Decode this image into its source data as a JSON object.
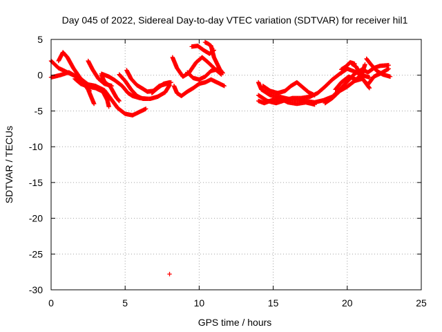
{
  "chart_data": {
    "type": "scatter",
    "title": "Day 045 of 2022, Sidereal Day-to-day VTEC variation (SDTVAR) for receiver hil1",
    "xlabel": "GPS time / hours",
    "ylabel": "SDTVAR / TECUs",
    "xlim": [
      0,
      25
    ],
    "ylim": [
      -30,
      5
    ],
    "xticks": [
      0,
      5,
      10,
      15,
      20,
      25
    ],
    "yticks": [
      5,
      0,
      -5,
      -10,
      -15,
      -20,
      -25,
      -30
    ],
    "x_tick_labels": [
      "0",
      "5",
      "10",
      "15",
      "20",
      "25"
    ],
    "y_tick_labels": [
      "5",
      "0",
      "-5",
      "-10",
      "-15",
      "-20",
      "-25",
      "-30"
    ],
    "grid": true,
    "marker": "plus",
    "series_color": "#ff0000",
    "tracks": [
      [
        [
          0.0,
          2.0
        ],
        [
          0.5,
          1.0
        ],
        [
          1.0,
          0.5
        ],
        [
          1.5,
          0.0
        ],
        [
          2.0,
          -0.5
        ],
        [
          2.5,
          -2.0
        ],
        [
          2.9,
          -4.0
        ]
      ],
      [
        [
          0.0,
          -0.3
        ],
        [
          0.6,
          0.0
        ],
        [
          1.2,
          0.4
        ],
        [
          1.8,
          -0.3
        ],
        [
          2.2,
          -1.2
        ],
        [
          2.6,
          -2.2
        ]
      ],
      [
        [
          0.5,
          2.0
        ],
        [
          0.8,
          3.2
        ],
        [
          1.1,
          2.5
        ],
        [
          1.5,
          1.0
        ],
        [
          2.0,
          -0.5
        ],
        [
          2.5,
          -1.3
        ],
        [
          3.0,
          -1.5
        ],
        [
          3.6,
          -2.1
        ],
        [
          4.0,
          -3.2
        ],
        [
          4.5,
          -4.6
        ],
        [
          5.0,
          -5.4
        ],
        [
          5.5,
          -5.6
        ],
        [
          6.0,
          -5.1
        ],
        [
          6.4,
          -4.7
        ]
      ],
      [
        [
          1.6,
          -0.5
        ],
        [
          2.0,
          -1.2
        ],
        [
          2.5,
          -1.6
        ],
        [
          3.0,
          -1.8
        ],
        [
          3.5,
          -2.3
        ],
        [
          3.8,
          -3.5
        ],
        [
          3.9,
          -4.4
        ]
      ],
      [
        [
          2.5,
          2.0
        ],
        [
          2.8,
          0.8
        ],
        [
          3.2,
          -0.5
        ],
        [
          3.6,
          -1.2
        ],
        [
          4.1,
          -1.5
        ]
      ],
      [
        [
          3.4,
          0.0
        ],
        [
          3.6,
          -0.9
        ],
        [
          4.0,
          -1.6
        ],
        [
          4.4,
          -3.1
        ],
        [
          4.6,
          -3.6
        ]
      ],
      [
        [
          3.4,
          0.2
        ],
        [
          3.9,
          -0.2
        ],
        [
          4.3,
          -0.7
        ],
        [
          4.8,
          -1.5
        ],
        [
          5.2,
          -2.5
        ],
        [
          5.5,
          -2.9
        ],
        [
          6.0,
          -3.2
        ],
        [
          6.5,
          -3.3
        ]
      ],
      [
        [
          4.6,
          0.1
        ],
        [
          5.0,
          -0.8
        ],
        [
          5.4,
          -2.0
        ],
        [
          5.8,
          -2.9
        ],
        [
          6.2,
          -3.3
        ],
        [
          6.7,
          -3.3
        ],
        [
          7.2,
          -3.0
        ],
        [
          7.7,
          -2.4
        ],
        [
          8.0,
          -1.4
        ]
      ],
      [
        [
          5.1,
          0.7
        ],
        [
          5.4,
          -0.5
        ],
        [
          5.8,
          -1.4
        ],
        [
          6.2,
          -1.9
        ],
        [
          6.5,
          -2.3
        ],
        [
          6.9,
          -2.2
        ],
        [
          7.3,
          -1.5
        ],
        [
          7.8,
          -1.2
        ],
        [
          8.1,
          -1.0
        ]
      ],
      [
        [
          6.8,
          -2.5
        ],
        [
          7.2,
          -1.8
        ],
        [
          7.6,
          -1.2
        ],
        [
          8.0,
          -1.0
        ]
      ],
      [
        [
          8.0,
          -27.8
        ]
      ],
      [
        [
          8.2,
          2.5
        ],
        [
          8.5,
          1.0
        ],
        [
          8.9,
          -0.2
        ],
        [
          9.3,
          0.3
        ],
        [
          9.8,
          1.8
        ],
        [
          10.2,
          2.5
        ],
        [
          10.6,
          1.8
        ],
        [
          11.1,
          0.8
        ],
        [
          11.5,
          0.1
        ]
      ],
      [
        [
          8.3,
          -1.5
        ],
        [
          8.5,
          -2.5
        ],
        [
          8.8,
          -2.9
        ],
        [
          9.2,
          -2.3
        ],
        [
          9.6,
          -1.8
        ],
        [
          10.0,
          -1.2
        ],
        [
          10.4,
          -1.0
        ],
        [
          10.8,
          -0.6
        ],
        [
          11.2,
          -1.0
        ],
        [
          11.7,
          -1.5
        ]
      ],
      [
        [
          9.2,
          0.4
        ],
        [
          9.6,
          -0.4
        ],
        [
          10.0,
          -0.6
        ],
        [
          10.4,
          -0.2
        ],
        [
          10.8,
          0.6
        ],
        [
          11.2,
          0.8
        ]
      ],
      [
        [
          9.5,
          4.0
        ],
        [
          9.9,
          4.1
        ],
        [
          10.3,
          3.5
        ],
        [
          10.7,
          3.0
        ],
        [
          11.0,
          3.5
        ]
      ],
      [
        [
          10.4,
          4.6
        ],
        [
          10.6,
          4.4
        ],
        [
          10.8,
          4.1
        ],
        [
          11.0,
          2.5
        ],
        [
          11.4,
          0.8
        ],
        [
          11.6,
          0.3
        ]
      ],
      [
        [
          14.0,
          -1.0
        ],
        [
          14.2,
          -2.0
        ],
        [
          14.8,
          -2.8
        ],
        [
          15.4,
          -3.0
        ],
        [
          16.0,
          -3.3
        ],
        [
          16.6,
          -3.4
        ],
        [
          17.2,
          -3.6
        ],
        [
          17.8,
          -3.8
        ],
        [
          18.4,
          -3.5
        ],
        [
          19.0,
          -3.0
        ],
        [
          19.5,
          -2.0
        ],
        [
          20.0,
          -0.9
        ],
        [
          20.5,
          0.2
        ],
        [
          21.0,
          0.8
        ],
        [
          21.4,
          0.4
        ],
        [
          21.8,
          1.0
        ],
        [
          22.2,
          1.3
        ],
        [
          22.8,
          1.4
        ]
      ],
      [
        [
          14.0,
          -2.8
        ],
        [
          14.6,
          -3.6
        ],
        [
          15.2,
          -3.9
        ],
        [
          15.8,
          -3.5
        ],
        [
          16.3,
          -3.2
        ],
        [
          16.9,
          -3.2
        ],
        [
          17.5,
          -3.0
        ],
        [
          18.0,
          -2.5
        ],
        [
          18.5,
          -1.6
        ],
        [
          19.0,
          -0.6
        ],
        [
          19.5,
          0.2
        ],
        [
          20.0,
          0.9
        ],
        [
          20.5,
          0.5
        ],
        [
          21.0,
          0.0
        ],
        [
          21.5,
          -0.3
        ]
      ],
      [
        [
          14.3,
          -1.5
        ],
        [
          14.8,
          -2.2
        ],
        [
          15.3,
          -2.5
        ],
        [
          15.8,
          -2.2
        ],
        [
          16.2,
          -1.5
        ],
        [
          16.6,
          -1.0
        ],
        [
          17.0,
          -1.7
        ],
        [
          17.4,
          -2.4
        ],
        [
          17.8,
          -2.8
        ]
      ],
      [
        [
          14.0,
          -3.6
        ],
        [
          14.4,
          -3.9
        ],
        [
          14.9,
          -3.5
        ],
        [
          15.4,
          -3.2
        ],
        [
          16.0,
          -3.8
        ],
        [
          16.6,
          -4.0
        ],
        [
          17.2,
          -3.8
        ],
        [
          17.8,
          -4.1
        ]
      ],
      [
        [
          18.5,
          -3.9
        ],
        [
          19.0,
          -3.2
        ],
        [
          19.5,
          -2.2
        ],
        [
          20.0,
          -1.6
        ],
        [
          20.5,
          -0.8
        ],
        [
          21.0,
          -0.5
        ],
        [
          21.4,
          -1.3
        ],
        [
          21.8,
          -0.2
        ],
        [
          22.3,
          0.3
        ],
        [
          22.8,
          0.9
        ]
      ],
      [
        [
          19.2,
          -2.0
        ],
        [
          19.6,
          -1.0
        ],
        [
          20.1,
          -0.2
        ],
        [
          20.6,
          -0.6
        ],
        [
          21.0,
          0.2
        ],
        [
          21.2,
          1.5
        ]
      ],
      [
        [
          20.3,
          1.6
        ],
        [
          20.6,
          1.2
        ],
        [
          21.0,
          -0.4
        ],
        [
          21.5,
          -1.8
        ]
      ],
      [
        [
          21.3,
          2.3
        ],
        [
          21.6,
          1.5
        ],
        [
          22.0,
          0.6
        ],
        [
          22.4,
          0.1
        ],
        [
          22.9,
          -0.2
        ]
      ],
      [
        [
          19.6,
          0.8
        ],
        [
          19.9,
          1.2
        ],
        [
          20.2,
          1.8
        ],
        [
          20.5,
          1.6
        ]
      ]
    ]
  }
}
